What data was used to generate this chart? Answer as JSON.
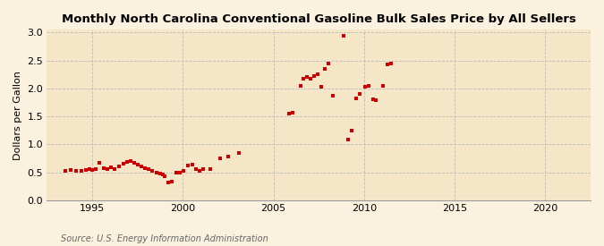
{
  "title": "Monthly North Carolina Conventional Gasoline Bulk Sales Price by All Sellers",
  "ylabel": "Dollars per Gallon",
  "source": "Source: U.S. Energy Information Administration",
  "plot_bg_color": "#F5E6C8",
  "outer_bg_color": "#FAF2DF",
  "marker_color": "#CC0000",
  "xlim": [
    1992.5,
    2022.5
  ],
  "ylim": [
    0.0,
    3.05
  ],
  "xticks": [
    1995,
    2000,
    2005,
    2010,
    2015,
    2020
  ],
  "yticks": [
    0.0,
    0.5,
    1.0,
    1.5,
    2.0,
    2.5,
    3.0
  ],
  "data_points": [
    [
      1993.5,
      0.52
    ],
    [
      1993.8,
      0.54
    ],
    [
      1994.1,
      0.52
    ],
    [
      1994.4,
      0.53
    ],
    [
      1994.65,
      0.54
    ],
    [
      1994.85,
      0.55
    ],
    [
      1995.0,
      0.54
    ],
    [
      1995.2,
      0.56
    ],
    [
      1995.4,
      0.67
    ],
    [
      1995.65,
      0.57
    ],
    [
      1995.85,
      0.56
    ],
    [
      1996.05,
      0.59
    ],
    [
      1996.25,
      0.56
    ],
    [
      1996.5,
      0.6
    ],
    [
      1996.7,
      0.65
    ],
    [
      1996.9,
      0.68
    ],
    [
      1997.1,
      0.7
    ],
    [
      1997.3,
      0.67
    ],
    [
      1997.5,
      0.64
    ],
    [
      1997.7,
      0.6
    ],
    [
      1997.9,
      0.58
    ],
    [
      1998.1,
      0.56
    ],
    [
      1998.3,
      0.52
    ],
    [
      1998.55,
      0.5
    ],
    [
      1998.75,
      0.47
    ],
    [
      1998.9,
      0.46
    ],
    [
      1999.0,
      0.43
    ],
    [
      1999.2,
      0.31
    ],
    [
      1999.4,
      0.33
    ],
    [
      1999.65,
      0.49
    ],
    [
      1999.85,
      0.49
    ],
    [
      2000.05,
      0.52
    ],
    [
      2000.3,
      0.62
    ],
    [
      2000.55,
      0.64
    ],
    [
      2000.7,
      0.55
    ],
    [
      2000.9,
      0.53
    ],
    [
      2001.1,
      0.55
    ],
    [
      2001.5,
      0.56
    ],
    [
      2002.05,
      0.75
    ],
    [
      2002.5,
      0.78
    ],
    [
      2003.1,
      0.84
    ],
    [
      2005.85,
      1.55
    ],
    [
      2006.05,
      1.56
    ],
    [
      2006.5,
      2.05
    ],
    [
      2006.65,
      2.18
    ],
    [
      2006.85,
      2.2
    ],
    [
      2007.05,
      2.18
    ],
    [
      2007.25,
      2.22
    ],
    [
      2007.45,
      2.25
    ],
    [
      2007.65,
      2.03
    ],
    [
      2007.85,
      2.35
    ],
    [
      2008.05,
      2.45
    ],
    [
      2008.3,
      1.87
    ],
    [
      2008.85,
      2.95
    ],
    [
      2009.1,
      1.09
    ],
    [
      2009.3,
      1.25
    ],
    [
      2009.55,
      1.82
    ],
    [
      2009.75,
      1.9
    ],
    [
      2010.05,
      2.03
    ],
    [
      2010.25,
      2.05
    ],
    [
      2010.5,
      1.8
    ],
    [
      2010.65,
      1.79
    ],
    [
      2011.05,
      2.05
    ],
    [
      2011.3,
      2.43
    ],
    [
      2011.5,
      2.45
    ]
  ]
}
